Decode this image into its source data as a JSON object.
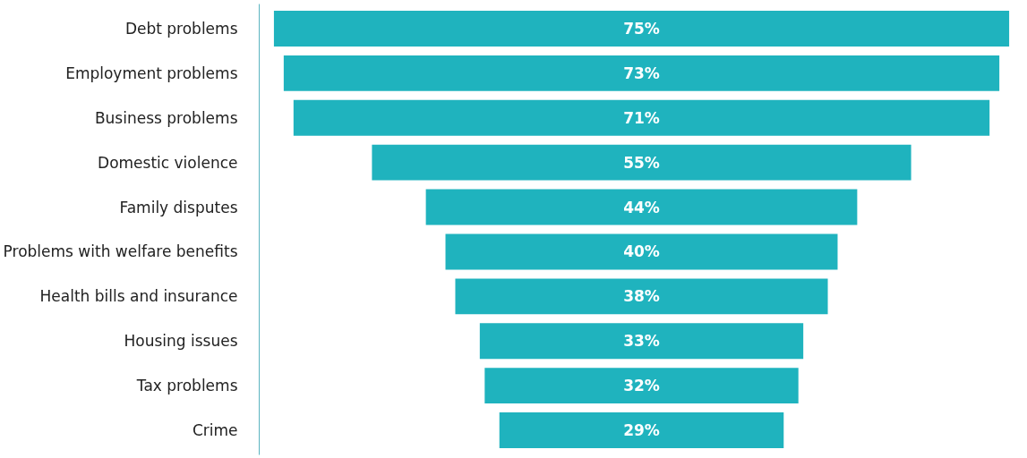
{
  "chart_data": {
    "type": "other",
    "categories": [
      "Debt problems",
      "Employment problems",
      "Business problems",
      "Domestic violence",
      "Family disputes",
      "Problems with welfare benefits",
      "Health bills and insurance",
      "Housing issues",
      "Tax problems",
      "Crime"
    ],
    "values": [
      75,
      73,
      71,
      55,
      44,
      40,
      38,
      33,
      32,
      29
    ],
    "value_labels": [
      "75%",
      "73%",
      "71%",
      "55%",
      "44%",
      "40%",
      "38%",
      "33%",
      "32%",
      "29%"
    ],
    "color": "#1fb3be"
  }
}
